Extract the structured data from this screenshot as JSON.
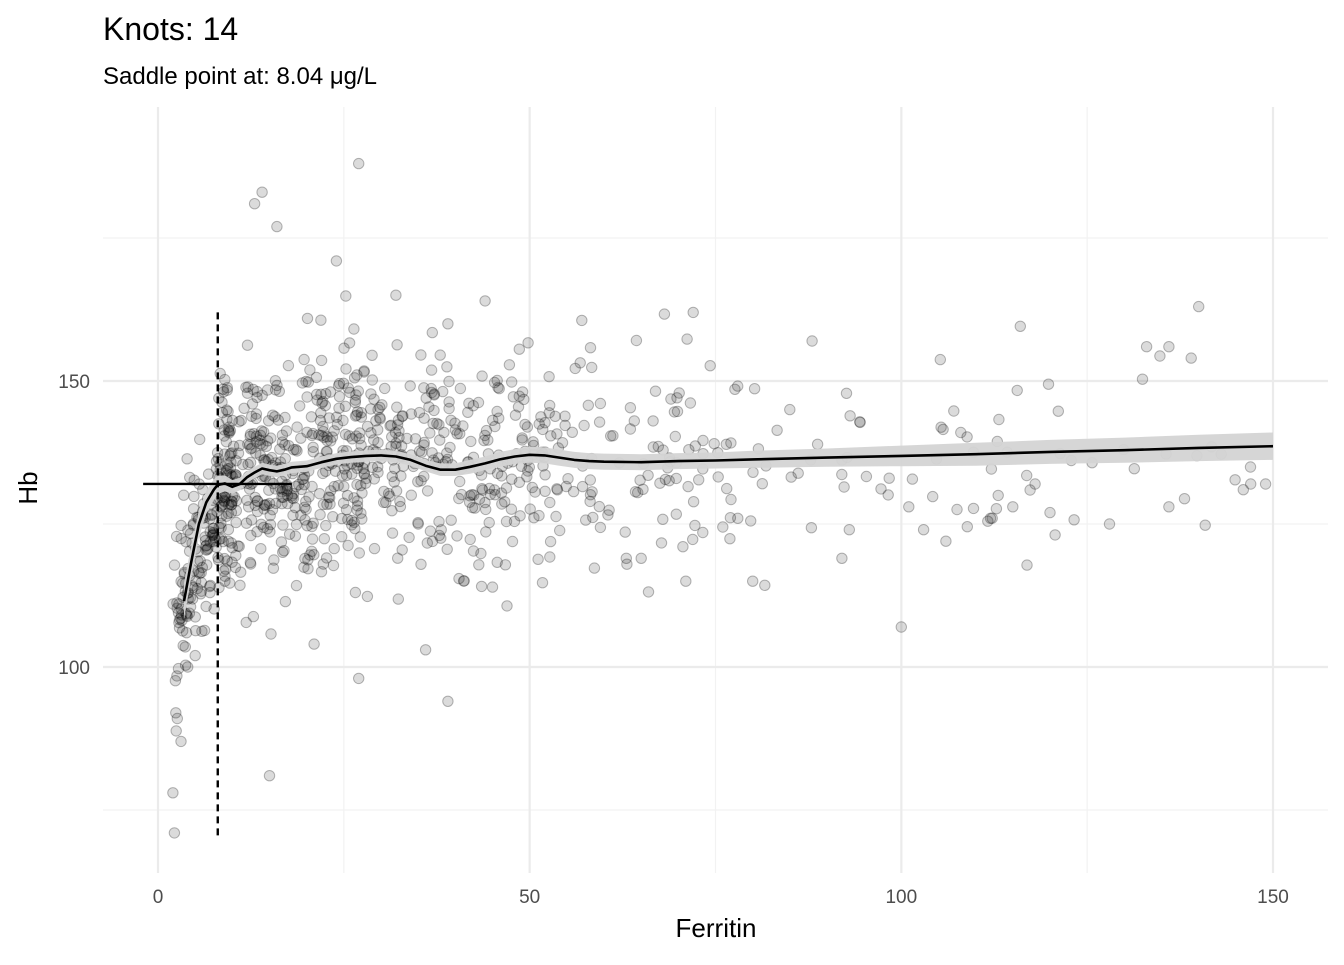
{
  "chart_data": {
    "type": "scatter",
    "title": "Knots: 14",
    "subtitle": "Saddle point at: 8.04 μg/L",
    "xlabel": "Ferritin",
    "ylabel": "Hb",
    "xlim": [
      -2,
      151
    ],
    "ylim": [
      65,
      190
    ],
    "x_major_ticks": [
      0,
      50,
      100,
      150
    ],
    "x_tick_labels": [
      "0",
      "50",
      "100",
      "150"
    ],
    "x_minor_ticks": [
      25,
      75,
      125
    ],
    "y_major_ticks": [
      100,
      150
    ],
    "y_tick_labels": [
      "100",
      "150"
    ],
    "y_minor_ticks": [
      75,
      125,
      175
    ],
    "grid": true,
    "saddle_point": {
      "x": 8.04,
      "y": 132
    },
    "colors": {
      "points": "#000000",
      "fit_line": "#000000",
      "ribbon": "#d4d4d4",
      "grid": "#ebebeb"
    },
    "fit_curve": {
      "x": [
        3.5,
        4.5,
        5.5,
        6.5,
        7.5,
        8.0,
        9.0,
        10.0,
        11.0,
        12.0,
        13.0,
        14.0,
        15.0,
        16.0,
        17.0,
        18.0,
        20.0,
        22.0,
        24.0,
        26.0,
        28.0,
        30.0,
        32.0,
        34.0,
        36.0,
        38.0,
        40.0,
        42.0,
        44.0,
        46.0,
        48.0,
        50.0,
        52.0,
        54.0,
        56.0,
        58.0,
        60.0,
        65.0,
        70.0,
        75.0,
        80.0,
        90.0,
        100.0,
        110.0,
        120.0,
        130.0,
        140.0,
        150.0
      ],
      "y": [
        111.5,
        118.5,
        125.0,
        128.8,
        131.0,
        131.8,
        132.1,
        131.5,
        132.0,
        133.2,
        134.0,
        134.7,
        134.4,
        134.2,
        134.5,
        134.9,
        135.1,
        135.8,
        136.4,
        136.7,
        136.9,
        137.0,
        136.8,
        136.2,
        135.2,
        134.5,
        134.5,
        135.0,
        135.6,
        136.3,
        136.8,
        137.1,
        137.0,
        136.6,
        136.2,
        136.0,
        135.9,
        135.8,
        136.0,
        136.1,
        136.3,
        136.6,
        136.9,
        137.2,
        137.6,
        137.9,
        138.3,
        138.6
      ],
      "ribbon_half_width": [
        3.2,
        2.8,
        2.4,
        2.0,
        1.8,
        1.6,
        1.4,
        1.2,
        1.1,
        1.0,
        1.0,
        1.0,
        1.0,
        1.0,
        1.0,
        1.0,
        1.0,
        1.0,
        1.0,
        1.0,
        1.0,
        1.0,
        1.0,
        1.0,
        1.0,
        1.1,
        1.1,
        1.2,
        1.2,
        1.3,
        1.3,
        1.4,
        1.4,
        1.4,
        1.4,
        1.4,
        1.4,
        1.4,
        1.4,
        1.4,
        1.5,
        1.6,
        1.8,
        2.0,
        2.1,
        2.2,
        2.3,
        2.4
      ]
    },
    "saddle_segment": {
      "x": [
        -2,
        18
      ],
      "y": 132
    },
    "saddle_vline": {
      "x": 8.04,
      "y": [
        70,
        162
      ]
    },
    "points": {
      "x": [
        14.0,
        16.0,
        27.0,
        13.0,
        24.0,
        32.0,
        44.0,
        39.0,
        72.0,
        88.0,
        93.0,
        100.0,
        101.0,
        112.0,
        133.0,
        136.0,
        139.0,
        140.0,
        136.0,
        120.0,
        115.0,
        108.0,
        2.0,
        2.4,
        2.6,
        3.1,
        2.2,
        15.0,
        27.0,
        39.0,
        21.0,
        7.0,
        9.0,
        36.0,
        4.0,
        5.0,
        35.0,
        63.0,
        65.0,
        71.0,
        78.0,
        80.0,
        85.0,
        92.0,
        103.0,
        106.0,
        118.0,
        128.0,
        146.0,
        149.0,
        147.0
      ],
      "y": [
        183,
        177,
        188,
        181,
        171,
        165,
        164,
        160,
        162,
        157,
        124,
        107,
        128,
        126,
        156,
        156,
        154,
        163,
        128,
        127,
        128,
        141,
        78,
        92,
        91,
        87,
        71,
        81,
        98,
        94,
        104,
        113,
        115,
        103,
        100,
        102,
        125,
        119,
        119,
        115,
        126,
        115,
        145,
        119,
        124,
        122,
        132,
        125,
        131,
        132,
        132
      ],
      "cloud": {
        "count": 1000,
        "x_range": [
          2,
          150
        ],
        "note_units": "Ferritin μg/L"
      }
    }
  }
}
